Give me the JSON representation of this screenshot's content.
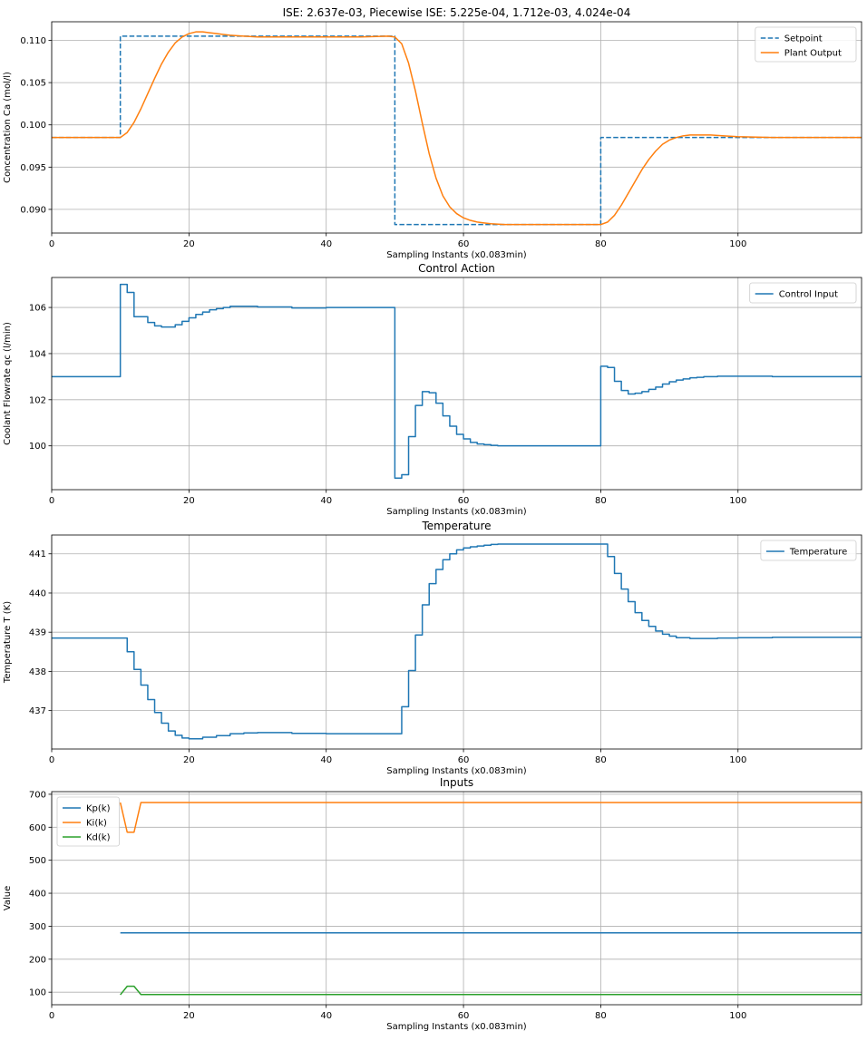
{
  "figure": {
    "background": "#ffffff"
  },
  "chart_data": [
    {
      "type": "line",
      "title": "ISE: 2.637e-03, Piecewise ISE: 5.225e-04, 1.712e-03, 4.024e-04",
      "xlabel": "Sampling Instants (x0.083min)",
      "ylabel": "Concentration Ca (mol/l)",
      "xlim": [
        0,
        118
      ],
      "ylim": [
        0.0872,
        0.1122
      ],
      "xticks": [
        0,
        20,
        40,
        60,
        80,
        100
      ],
      "yticks": [
        0.09,
        0.095,
        0.1,
        0.105,
        0.11
      ],
      "ytick_labels": [
        "0.090",
        "0.095",
        "0.100",
        "0.105",
        "0.110"
      ],
      "grid": true,
      "legend_position": "upper right",
      "series": [
        {
          "name": "Setpoint",
          "style": "dashed",
          "color": "#1f77b4",
          "x": [
            0,
            10,
            10,
            50,
            50,
            80,
            80,
            118
          ],
          "y": [
            0.0985,
            0.0985,
            0.1105,
            0.1105,
            0.0882,
            0.0882,
            0.0985,
            0.0985
          ]
        },
        {
          "name": "Plant Output",
          "style": "solid",
          "color": "#ff7f0e",
          "x": [
            0,
            10,
            11,
            12,
            13,
            14,
            15,
            16,
            17,
            18,
            19,
            20,
            21,
            22,
            23,
            24,
            25,
            26,
            28,
            30,
            35,
            40,
            45,
            49,
            50,
            51,
            52,
            53,
            54,
            55,
            56,
            57,
            58,
            59,
            60,
            61,
            62,
            63,
            64,
            66,
            70,
            75,
            79,
            80,
            81,
            82,
            83,
            84,
            85,
            86,
            87,
            88,
            89,
            90,
            91,
            92,
            93,
            94,
            95,
            96,
            98,
            100,
            105,
            110,
            118
          ],
          "y": [
            0.0985,
            0.0985,
            0.0991,
            0.1003,
            0.1019,
            0.1037,
            0.1055,
            0.1072,
            0.1086,
            0.1097,
            0.1104,
            0.1108,
            0.111,
            0.111,
            0.1109,
            0.1108,
            0.1107,
            0.1106,
            0.1105,
            0.1104,
            0.1104,
            0.1104,
            0.1104,
            0.1105,
            0.1104,
            0.1096,
            0.1073,
            0.104,
            0.1002,
            0.0966,
            0.0937,
            0.0916,
            0.0903,
            0.0895,
            0.089,
            0.0887,
            0.0885,
            0.0884,
            0.0883,
            0.0882,
            0.0882,
            0.0882,
            0.0882,
            0.0882,
            0.0885,
            0.0893,
            0.0905,
            0.0919,
            0.0933,
            0.0947,
            0.0959,
            0.0969,
            0.0977,
            0.0982,
            0.0985,
            0.0987,
            0.0988,
            0.0988,
            0.0988,
            0.0988,
            0.0987,
            0.0986,
            0.0985,
            0.0985,
            0.0985
          ]
        }
      ]
    },
    {
      "type": "line",
      "title": "Control Action",
      "xlabel": "Sampling Instants (x0.083min)",
      "ylabel": "Coolant Flowrate qc (l/min)",
      "xlim": [
        0,
        118
      ],
      "ylim": [
        98.1,
        107.3
      ],
      "xticks": [
        0,
        20,
        40,
        60,
        80,
        100
      ],
      "yticks": [
        100,
        102,
        104,
        106
      ],
      "ytick_labels": [
        "100",
        "102",
        "104",
        "106"
      ],
      "grid": true,
      "legend_position": "upper right",
      "series": [
        {
          "name": "Control Input",
          "style": "steps-post",
          "color": "#1f77b4",
          "x": [
            0,
            10,
            11,
            12,
            13,
            14,
            15,
            16,
            17,
            18,
            19,
            20,
            21,
            22,
            23,
            24,
            25,
            26,
            28,
            30,
            35,
            40,
            45,
            50,
            51,
            52,
            53,
            54,
            55,
            56,
            57,
            58,
            59,
            60,
            61,
            62,
            63,
            64,
            65,
            70,
            75,
            80,
            81,
            82,
            83,
            84,
            85,
            86,
            87,
            88,
            89,
            90,
            91,
            92,
            93,
            94,
            95,
            97,
            100,
            105,
            110,
            118
          ],
          "y": [
            103.0,
            107.0,
            106.65,
            105.6,
            105.6,
            105.35,
            105.2,
            105.15,
            105.15,
            105.25,
            105.4,
            105.55,
            105.7,
            105.8,
            105.9,
            105.95,
            106.0,
            106.05,
            106.05,
            106.02,
            105.98,
            106.0,
            106.0,
            98.6,
            98.75,
            100.4,
            101.75,
            102.35,
            102.3,
            101.85,
            101.3,
            100.85,
            100.5,
            100.3,
            100.15,
            100.08,
            100.05,
            100.02,
            100.0,
            100.0,
            100.0,
            103.45,
            103.4,
            102.8,
            102.4,
            102.25,
            102.28,
            102.35,
            102.45,
            102.55,
            102.68,
            102.78,
            102.85,
            102.9,
            102.95,
            102.97,
            103.0,
            103.02,
            103.02,
            103.0,
            103.0,
            103.0
          ]
        }
      ]
    },
    {
      "type": "line",
      "title": "Temperature",
      "xlabel": "Sampling Instants (x0.083min)",
      "ylabel": "Temperature T (K)",
      "xlim": [
        0,
        118
      ],
      "ylim": [
        436.02,
        441.48
      ],
      "xticks": [
        0,
        20,
        40,
        60,
        80,
        100
      ],
      "yticks": [
        437,
        438,
        439,
        440,
        441
      ],
      "ytick_labels": [
        "437",
        "438",
        "439",
        "440",
        "441"
      ],
      "grid": true,
      "legend_position": "upper right",
      "series": [
        {
          "name": "Temperature",
          "style": "steps-post",
          "color": "#1f77b4",
          "x": [
            0,
            11,
            12,
            13,
            14,
            15,
            16,
            17,
            18,
            19,
            20,
            22,
            24,
            26,
            28,
            30,
            35,
            40,
            45,
            51,
            52,
            53,
            54,
            55,
            56,
            57,
            58,
            59,
            60,
            61,
            62,
            63,
            64,
            65,
            70,
            75,
            81,
            82,
            83,
            84,
            85,
            86,
            87,
            88,
            89,
            90,
            91,
            93,
            95,
            97,
            100,
            105,
            110,
            118
          ],
          "y": [
            438.85,
            438.5,
            438.05,
            437.65,
            437.28,
            436.95,
            436.68,
            436.48,
            436.37,
            436.3,
            436.28,
            436.32,
            436.36,
            436.41,
            436.43,
            436.44,
            436.42,
            436.41,
            436.41,
            437.1,
            438.02,
            438.93,
            439.7,
            440.24,
            440.6,
            440.85,
            441.0,
            441.1,
            441.15,
            441.18,
            441.2,
            441.22,
            441.24,
            441.25,
            441.25,
            441.25,
            440.93,
            440.5,
            440.1,
            439.78,
            439.5,
            439.3,
            439.15,
            439.03,
            438.95,
            438.9,
            438.86,
            438.84,
            438.84,
            438.85,
            438.86,
            438.87,
            438.87,
            438.87
          ]
        }
      ]
    },
    {
      "type": "line",
      "title": "Inputs",
      "xlabel": "Sampling Instants (x0.083min)",
      "ylabel": "Value",
      "xlim": [
        0,
        118
      ],
      "ylim": [
        62,
        708
      ],
      "xticks": [
        0,
        20,
        40,
        60,
        80,
        100
      ],
      "yticks": [
        100,
        200,
        300,
        400,
        500,
        600,
        700
      ],
      "ytick_labels": [
        "100",
        "200",
        "300",
        "400",
        "500",
        "600",
        "700"
      ],
      "grid": true,
      "legend_position": "upper left",
      "series": [
        {
          "name": "Kp(k)",
          "style": "solid",
          "color": "#1f77b4",
          "x": [
            10,
            118
          ],
          "y": [
            280,
            280
          ]
        },
        {
          "name": "Ki(k)",
          "style": "solid",
          "color": "#ff7f0e",
          "x": [
            10,
            11,
            12,
            13,
            118
          ],
          "y": [
            675,
            585,
            585,
            675,
            675
          ]
        },
        {
          "name": "Kd(k)",
          "style": "solid",
          "color": "#2ca02c",
          "x": [
            10,
            11,
            12,
            13,
            118
          ],
          "y": [
            92,
            118,
            118,
            93,
            93
          ]
        }
      ]
    }
  ]
}
